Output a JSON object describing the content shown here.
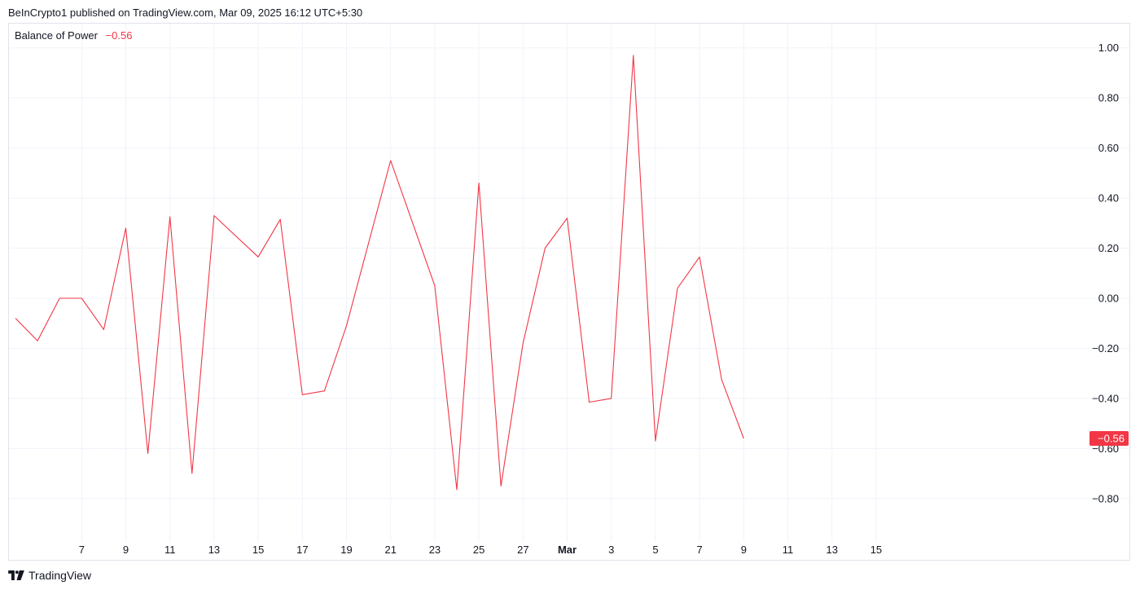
{
  "header": {
    "publisher_line": "BeInCrypto1 published on TradingView.com, Mar 09, 2025 16:12 UTC+5:30"
  },
  "legend": {
    "indicator_name": "Balance of Power",
    "current_value": "−0.56"
  },
  "footer": {
    "brand": "TradingView",
    "logo_icon": "tradingview-logo-icon"
  },
  "colors": {
    "line": "#f23645",
    "grid": "#f0f3fa",
    "text": "#131722",
    "border": "#e0e3eb"
  },
  "chart_data": {
    "type": "line",
    "series": [
      {
        "x": [
          "2025-02-04",
          "2025-02-05",
          "2025-02-06",
          "2025-02-07",
          "2025-02-08",
          "2025-02-09",
          "2025-02-10",
          "2025-02-11",
          "2025-02-12",
          "2025-02-13",
          "2025-02-15",
          "2025-02-16",
          "2025-02-17",
          "2025-02-18",
          "2025-02-19",
          "2025-02-21",
          "2025-02-23",
          "2025-02-24",
          "2025-02-25",
          "2025-02-26",
          "2025-02-27",
          "2025-02-28",
          "2025-03-01",
          "2025-03-02",
          "2025-03-03",
          "2025-03-04",
          "2025-03-05",
          "2025-03-06",
          "2025-03-07",
          "2025-03-08",
          "2025-03-09"
        ],
        "y": [
          -0.08,
          -0.17,
          0.0,
          0.0,
          -0.125,
          0.28,
          -0.62,
          0.325,
          -0.7,
          0.33,
          0.165,
          0.315,
          -0.385,
          -0.37,
          -0.11,
          0.55,
          0.05,
          -0.765,
          0.46,
          -0.75,
          -0.18,
          0.2,
          0.32,
          -0.415,
          -0.4,
          0.97,
          -0.57,
          0.04,
          0.165,
          -0.325,
          -0.56
        ]
      }
    ],
    "x_ticks": [
      {
        "date": "2025-02-07",
        "label": "7"
      },
      {
        "date": "2025-02-09",
        "label": "9"
      },
      {
        "date": "2025-02-11",
        "label": "11"
      },
      {
        "date": "2025-02-13",
        "label": "13"
      },
      {
        "date": "2025-02-15",
        "label": "15"
      },
      {
        "date": "2025-02-17",
        "label": "17"
      },
      {
        "date": "2025-02-19",
        "label": "19"
      },
      {
        "date": "2025-02-21",
        "label": "21"
      },
      {
        "date": "2025-02-23",
        "label": "23"
      },
      {
        "date": "2025-02-25",
        "label": "25"
      },
      {
        "date": "2025-02-27",
        "label": "27"
      },
      {
        "date": "2025-03-01",
        "label": "Mar",
        "bold": true
      },
      {
        "date": "2025-03-03",
        "label": "3"
      },
      {
        "date": "2025-03-05",
        "label": "5"
      },
      {
        "date": "2025-03-07",
        "label": "7"
      },
      {
        "date": "2025-03-09",
        "label": "9"
      },
      {
        "date": "2025-03-11",
        "label": "11"
      },
      {
        "date": "2025-03-13",
        "label": "13"
      },
      {
        "date": "2025-03-15",
        "label": "15"
      }
    ],
    "y_ticks": [
      {
        "value": 1.0,
        "label": "1.00"
      },
      {
        "value": 0.8,
        "label": "0.80"
      },
      {
        "value": 0.6,
        "label": "0.60"
      },
      {
        "value": 0.4,
        "label": "0.40"
      },
      {
        "value": 0.2,
        "label": "0.20"
      },
      {
        "value": 0.0,
        "label": "0.00"
      },
      {
        "value": -0.2,
        "label": "−0.20"
      },
      {
        "value": -0.4,
        "label": "−0.40"
      },
      {
        "value": -0.6,
        "label": "−0.60"
      },
      {
        "value": -0.8,
        "label": "−0.80"
      }
    ],
    "last_value_label": "−0.56",
    "ylim": [
      -0.97,
      1.1
    ],
    "grid": true,
    "y_axis_side": "right"
  }
}
